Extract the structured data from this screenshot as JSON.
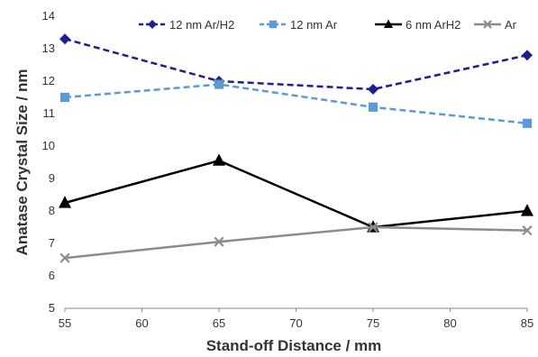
{
  "chart_data": {
    "type": "line",
    "title": "",
    "xlabel": "Stand-off Distance / mm",
    "ylabel": "Anatase Crystal Size / nm",
    "x": [
      55,
      65,
      75,
      85
    ],
    "xticks": [
      "55",
      "60",
      "65",
      "70",
      "75",
      "80",
      "85"
    ],
    "yticks": [
      "5",
      "6",
      "7",
      "8",
      "9",
      "10",
      "11",
      "12",
      "13",
      "14"
    ],
    "xlim": [
      55,
      85
    ],
    "ylim": [
      5,
      14
    ],
    "grid": false,
    "legend_position": "top",
    "series": [
      {
        "name": "12 nm Ar/H2",
        "values": [
          13.3,
          12.0,
          11.75,
          12.8
        ],
        "color": "#1f1f8f",
        "marker": "diamond",
        "dashed": true
      },
      {
        "name": "12 nm Ar",
        "values": [
          11.5,
          11.9,
          11.2,
          10.7
        ],
        "color": "#5b9bd5",
        "marker": "square",
        "dashed": true
      },
      {
        "name": "6 nm ArH2",
        "values": [
          8.25,
          9.55,
          7.5,
          8.0
        ],
        "color": "#000000",
        "marker": "triangle",
        "dashed": false
      },
      {
        "name": "Ar",
        "values": [
          6.55,
          7.05,
          7.5,
          7.4
        ],
        "color": "#8c8c8c",
        "marker": "x",
        "dashed": false
      }
    ]
  }
}
